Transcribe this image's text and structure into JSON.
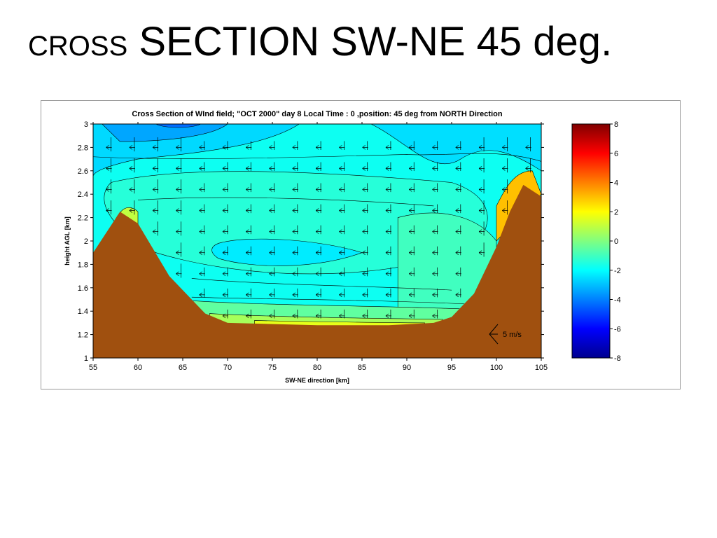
{
  "slide": {
    "title_small": "CROSS",
    "title_large": "SECTION SW-NE 45 deg."
  },
  "chart_data": {
    "type": "heatmap",
    "title": "Cross Section of WInd field; \"OCT 2000\" day 8 Local Time : 0 ,position: 45 deg from NORTH Direction",
    "xlabel": "SW-NE direction [km]",
    "ylabel": "height AGL [km]",
    "xlim": [
      55,
      105
    ],
    "ylim": [
      1,
      3
    ],
    "x_ticks": [
      "55",
      "60",
      "65",
      "70",
      "75",
      "80",
      "85",
      "90",
      "95",
      "100",
      "105"
    ],
    "y_ticks": [
      "1",
      "1.2",
      "1.4",
      "1.6",
      "1.8",
      "2",
      "2.2",
      "2.4",
      "2.6",
      "2.8",
      "3"
    ],
    "colorbar": {
      "range": [
        -8,
        8
      ],
      "ticks": [
        "8",
        "6",
        "4",
        "2",
        "0",
        "-2",
        "-4",
        "-6",
        "-8"
      ],
      "colormap": "jet"
    },
    "terrain_color": "#a0500f",
    "terrain_profile_km": [
      [
        55,
        1.9
      ],
      [
        58,
        2.25
      ],
      [
        60,
        2.15
      ],
      [
        63.5,
        1.7
      ],
      [
        66,
        1.5
      ],
      [
        67.5,
        1.38
      ],
      [
        70,
        1.3
      ],
      [
        80,
        1.28
      ],
      [
        88,
        1.28
      ],
      [
        93,
        1.3
      ],
      [
        95,
        1.35
      ],
      [
        97.5,
        1.55
      ],
      [
        100,
        1.95
      ],
      [
        101.5,
        2.25
      ],
      [
        103,
        2.48
      ],
      [
        105,
        2.38
      ]
    ],
    "wind_reference_label": "5 m/s"
  },
  "colors": {
    "cmap_stops": [
      "#00008f",
      "#0000ff",
      "#0080ff",
      "#00ffff",
      "#80ff80",
      "#ffff00",
      "#ff8000",
      "#ff0000",
      "#800000"
    ],
    "terrain": "#a0500f",
    "frame": "#9a9a9a"
  }
}
